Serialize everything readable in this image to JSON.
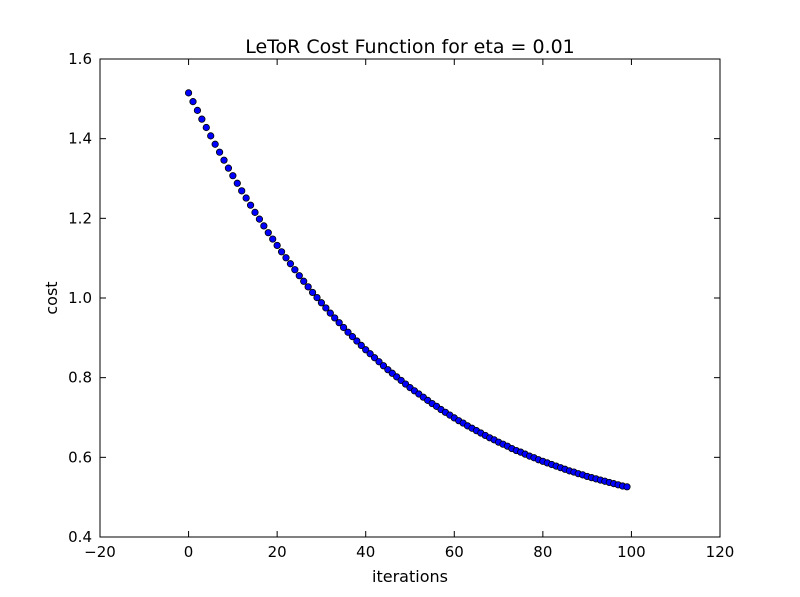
{
  "chart_data": {
    "type": "scatter",
    "title": "LeToR Cost Function for eta = 0.01",
    "xlabel": "iterations",
    "ylabel": "cost",
    "xlim": [
      -20,
      120
    ],
    "ylim": [
      0.4,
      1.6
    ],
    "xticks": [
      "−20",
      "0",
      "20",
      "40",
      "60",
      "80",
      "100",
      "120"
    ],
    "yticks": [
      "0.4",
      "0.6",
      "0.8",
      "1.0",
      "1.2",
      "1.4",
      "1.6"
    ],
    "grid": false,
    "legend": "none",
    "marker_color": "#0000ff",
    "series": [
      {
        "x": [
          0,
          1,
          2,
          3,
          4,
          5,
          6,
          7,
          8,
          9,
          10,
          11,
          12,
          13,
          14,
          15,
          16,
          17,
          18,
          19,
          20,
          21,
          22,
          23,
          24,
          25,
          26,
          27,
          28,
          29,
          30,
          31,
          32,
          33,
          34,
          35,
          36,
          37,
          38,
          39,
          40,
          41,
          42,
          43,
          44,
          45,
          46,
          47,
          48,
          49,
          50,
          51,
          52,
          53,
          54,
          55,
          56,
          57,
          58,
          59,
          60,
          61,
          62,
          63,
          64,
          65,
          66,
          67,
          68,
          69,
          70,
          71,
          72,
          73,
          74,
          75,
          76,
          77,
          78,
          79,
          80,
          81,
          82,
          83,
          84,
          85,
          86,
          87,
          88,
          89,
          90,
          91,
          92,
          93,
          94,
          95,
          96,
          97,
          98,
          99
        ],
        "y": [
          1.515,
          1.493,
          1.471,
          1.449,
          1.428,
          1.407,
          1.386,
          1.366,
          1.346,
          1.326,
          1.307,
          1.288,
          1.269,
          1.251,
          1.233,
          1.215,
          1.198,
          1.181,
          1.164,
          1.148,
          1.132,
          1.116,
          1.101,
          1.086,
          1.071,
          1.056,
          1.042,
          1.028,
          1.014,
          1.001,
          0.988,
          0.975,
          0.962,
          0.95,
          0.938,
          0.926,
          0.914,
          0.903,
          0.892,
          0.881,
          0.87,
          0.86,
          0.85,
          0.84,
          0.83,
          0.82,
          0.811,
          0.802,
          0.793,
          0.784,
          0.775,
          0.767,
          0.759,
          0.751,
          0.743,
          0.735,
          0.728,
          0.72,
          0.713,
          0.706,
          0.699,
          0.692,
          0.686,
          0.679,
          0.673,
          0.667,
          0.661,
          0.655,
          0.649,
          0.644,
          0.638,
          0.633,
          0.628,
          0.622,
          0.617,
          0.613,
          0.608,
          0.603,
          0.599,
          0.594,
          0.59,
          0.586,
          0.582,
          0.578,
          0.574,
          0.57,
          0.566,
          0.563,
          0.559,
          0.556,
          0.552,
          0.549,
          0.546,
          0.543,
          0.54,
          0.537,
          0.534,
          0.531,
          0.528,
          0.526
        ]
      }
    ]
  }
}
